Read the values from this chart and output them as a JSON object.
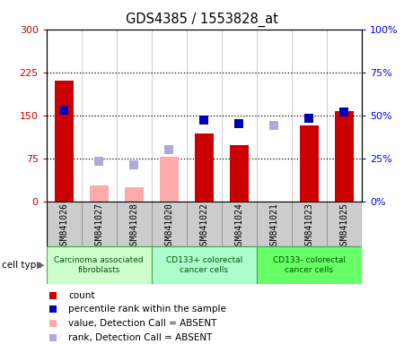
{
  "title": "GDS4385 / 1553828_at",
  "samples": [
    "GSM841026",
    "GSM841027",
    "GSM841028",
    "GSM841020",
    "GSM841022",
    "GSM841024",
    "GSM841021",
    "GSM841023",
    "GSM841025"
  ],
  "count_present": [
    210,
    0,
    0,
    0,
    118,
    98,
    0,
    132,
    158
  ],
  "count_absent": [
    0,
    28,
    25,
    78,
    0,
    0,
    0,
    0,
    0
  ],
  "rank_present": [
    53,
    0,
    0,
    0,
    47,
    45,
    0,
    48,
    52
  ],
  "rank_absent": [
    0,
    23,
    21,
    30,
    0,
    0,
    44,
    0,
    0
  ],
  "groups": [
    {
      "label": "Carcinoma associated\nfibroblasts",
      "start": 0,
      "end": 3
    },
    {
      "label": "CD133+ colorectal\ncancer cells",
      "start": 3,
      "end": 6
    },
    {
      "label": "CD133- colorectal\ncancer cells",
      "start": 6,
      "end": 9
    }
  ],
  "group_colors": [
    "#ccffcc",
    "#aaffcc",
    "#66ff66"
  ],
  "group_border_color": "#44aa44",
  "ylim_left": [
    0,
    300
  ],
  "ylim_right": [
    0,
    100
  ],
  "yticks_left": [
    0,
    75,
    150,
    225,
    300
  ],
  "ytick_labels_left": [
    "0",
    "75",
    "150",
    "225",
    "300"
  ],
  "yticks_right": [
    0,
    25,
    50,
    75,
    100
  ],
  "ytick_labels_right": [
    "0%",
    "25%",
    "50%",
    "75%",
    "100%"
  ],
  "color_count": "#cc0000",
  "color_rank_present": "#0000bb",
  "color_value_absent": "#ffaaaa",
  "color_rank_absent": "#aaaadd",
  "dotline_color": "black",
  "bar_width": 0.55,
  "marker_size": 7,
  "bg_plot": "white",
  "bg_sample": "#cccccc",
  "bg_fig": "white",
  "legend_labels": [
    "count",
    "percentile rank within the sample",
    "value, Detection Call = ABSENT",
    "rank, Detection Call = ABSENT"
  ],
  "legend_colors": [
    "#cc0000",
    "#0000bb",
    "#ffaaaa",
    "#aaaadd"
  ]
}
